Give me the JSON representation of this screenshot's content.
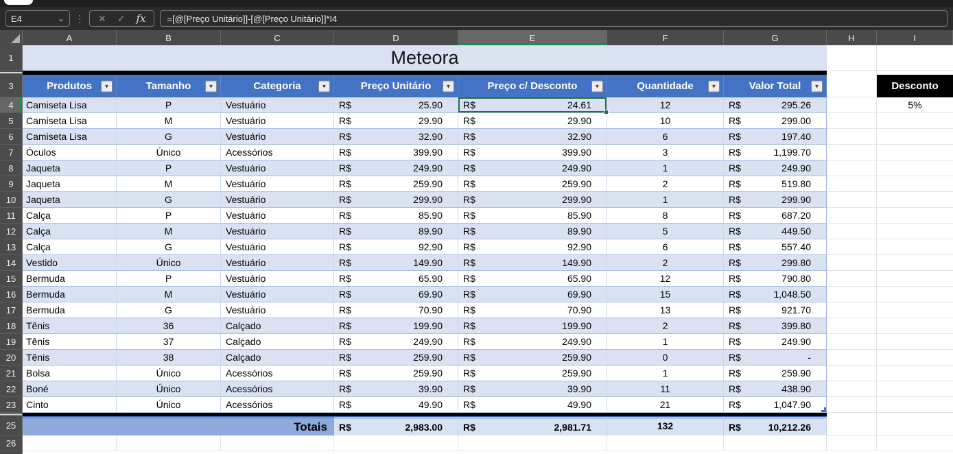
{
  "chrome": {
    "cell_ref": "E4",
    "formula": "=[@[Preço Unitário]]-[@[Preço Unitário]]*I4"
  },
  "icons": {
    "chevron_down": "⌄",
    "dots_separator": "⋮",
    "cancel": "✕",
    "confirm": "✓",
    "fx": "fx",
    "filter": "▼"
  },
  "sheet": {
    "col_letters": [
      "A",
      "B",
      "C",
      "D",
      "E",
      "F",
      "G",
      "H",
      "I"
    ],
    "selected_col": "E",
    "selected_row": "4",
    "title_row_num": "1",
    "header_row_num": "3",
    "totals_row_num": "25",
    "empty_row_num": "26"
  },
  "title": "Meteora",
  "currency": "R$",
  "discount_panel": {
    "header": "Desconto",
    "value": "5%"
  },
  "colors": {
    "header_blue": "#4472C4",
    "band_blue": "#D9E1F2",
    "totals_left_blue": "#8EAADB",
    "totals_right_blue": "#D9E2F3",
    "selection_green": "#217346",
    "discount_header_bg": "#000000"
  },
  "table": {
    "headers": [
      "Produtos",
      "Tamanho",
      "Categoria",
      "Preço Unitário",
      "Preço c/ Desconto",
      "Quantidade",
      "Valor Total"
    ],
    "rows": [
      {
        "n": "4",
        "produto": "Camiseta Lisa",
        "tamanho": "P",
        "categoria": "Vestuário",
        "preco_unitario": "25.90",
        "preco_desconto": "24.61",
        "quantidade": "12",
        "valor_total": "295.26"
      },
      {
        "n": "5",
        "produto": "Camiseta Lisa",
        "tamanho": "M",
        "categoria": "Vestuário",
        "preco_unitario": "29.90",
        "preco_desconto": "29.90",
        "quantidade": "10",
        "valor_total": "299.00"
      },
      {
        "n": "6",
        "produto": "Camiseta Lisa",
        "tamanho": "G",
        "categoria": "Vestuário",
        "preco_unitario": "32.90",
        "preco_desconto": "32.90",
        "quantidade": "6",
        "valor_total": "197.40"
      },
      {
        "n": "7",
        "produto": "Óculos",
        "tamanho": "Único",
        "categoria": "Acessórios",
        "preco_unitario": "399.90",
        "preco_desconto": "399.90",
        "quantidade": "3",
        "valor_total": "1,199.70"
      },
      {
        "n": "8",
        "produto": "Jaqueta",
        "tamanho": "P",
        "categoria": "Vestuário",
        "preco_unitario": "249.90",
        "preco_desconto": "249.90",
        "quantidade": "1",
        "valor_total": "249.90"
      },
      {
        "n": "9",
        "produto": "Jaqueta",
        "tamanho": "M",
        "categoria": "Vestuário",
        "preco_unitario": "259.90",
        "preco_desconto": "259.90",
        "quantidade": "2",
        "valor_total": "519.80"
      },
      {
        "n": "10",
        "produto": "Jaqueta",
        "tamanho": "G",
        "categoria": "Vestuário",
        "preco_unitario": "299.90",
        "preco_desconto": "299.90",
        "quantidade": "1",
        "valor_total": "299.90"
      },
      {
        "n": "11",
        "produto": "Calça",
        "tamanho": "P",
        "categoria": "Vestuário",
        "preco_unitario": "85.90",
        "preco_desconto": "85.90",
        "quantidade": "8",
        "valor_total": "687.20"
      },
      {
        "n": "12",
        "produto": "Calça",
        "tamanho": "M",
        "categoria": "Vestuário",
        "preco_unitario": "89.90",
        "preco_desconto": "89.90",
        "quantidade": "5",
        "valor_total": "449.50"
      },
      {
        "n": "13",
        "produto": "Calça",
        "tamanho": "G",
        "categoria": "Vestuário",
        "preco_unitario": "92.90",
        "preco_desconto": "92.90",
        "quantidade": "6",
        "valor_total": "557.40"
      },
      {
        "n": "14",
        "produto": "Vestido",
        "tamanho": "Único",
        "categoria": "Vestuário",
        "preco_unitario": "149.90",
        "preco_desconto": "149.90",
        "quantidade": "2",
        "valor_total": "299.80"
      },
      {
        "n": "15",
        "produto": "Bermuda",
        "tamanho": "P",
        "categoria": "Vestuário",
        "preco_unitario": "65.90",
        "preco_desconto": "65.90",
        "quantidade": "12",
        "valor_total": "790.80"
      },
      {
        "n": "16",
        "produto": "Bermuda",
        "tamanho": "M",
        "categoria": "Vestuário",
        "preco_unitario": "69.90",
        "preco_desconto": "69.90",
        "quantidade": "15",
        "valor_total": "1,048.50"
      },
      {
        "n": "17",
        "produto": "Bermuda",
        "tamanho": "G",
        "categoria": "Vestuário",
        "preco_unitario": "70.90",
        "preco_desconto": "70.90",
        "quantidade": "13",
        "valor_total": "921.70"
      },
      {
        "n": "18",
        "produto": "Tênis",
        "tamanho": "36",
        "categoria": "Calçado",
        "preco_unitario": "199.90",
        "preco_desconto": "199.90",
        "quantidade": "2",
        "valor_total": "399.80"
      },
      {
        "n": "19",
        "produto": "Tênis",
        "tamanho": "37",
        "categoria": "Calçado",
        "preco_unitario": "249.90",
        "preco_desconto": "249.90",
        "quantidade": "1",
        "valor_total": "249.90"
      },
      {
        "n": "20",
        "produto": "Tênis",
        "tamanho": "38",
        "categoria": "Calçado",
        "preco_unitario": "259.90",
        "preco_desconto": "259.90",
        "quantidade": "0",
        "valor_total": "-"
      },
      {
        "n": "21",
        "produto": "Bolsa",
        "tamanho": "Único",
        "categoria": "Acessórios",
        "preco_unitario": "259.90",
        "preco_desconto": "259.90",
        "quantidade": "1",
        "valor_total": "259.90"
      },
      {
        "n": "22",
        "produto": "Boné",
        "tamanho": "Único",
        "categoria": "Acessórios",
        "preco_unitario": "39.90",
        "preco_desconto": "39.90",
        "quantidade": "11",
        "valor_total": "438.90"
      },
      {
        "n": "23",
        "produto": "Cinto",
        "tamanho": "Único",
        "categoria": "Acessórios",
        "preco_unitario": "49.90",
        "preco_desconto": "49.90",
        "quantidade": "21",
        "valor_total": "1,047.90"
      }
    ],
    "totals": {
      "label": "Totais",
      "preco_unitario": "2,983.00",
      "preco_desconto": "2,981.71",
      "quantidade": "132",
      "valor_total": "10,212.26"
    }
  }
}
